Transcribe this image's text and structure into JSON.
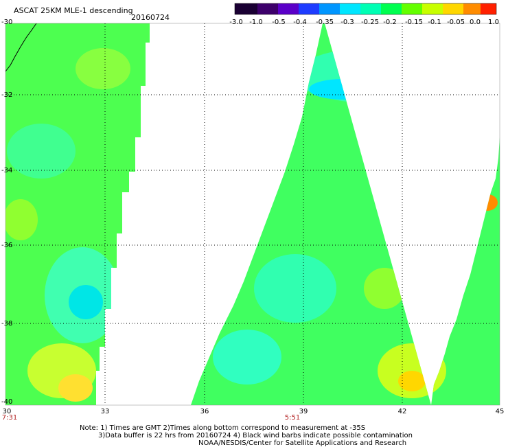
{
  "header": {
    "title": "ASCAT 25KM MLE-1 descending",
    "date": "20160724"
  },
  "colorbar": {
    "tick_labels": [
      "-3.0",
      "-1.0",
      "-0.5",
      "-0.4",
      "-0.35",
      "-0.3",
      "-0.25",
      "-0.2",
      "-0.15",
      "-0.1",
      "-0.05",
      "0.0",
      "1.0"
    ],
    "colors": [
      "#1a0033",
      "#3d006b",
      "#5a00c8",
      "#1e3cff",
      "#0096ff",
      "#00e6ff",
      "#00ffb4",
      "#00ff50",
      "#64ff00",
      "#c8ff00",
      "#ffd700",
      "#ff8c00",
      "#ff2000"
    ]
  },
  "axes": {
    "lat_labels": [
      "-30",
      "-32",
      "-34",
      "-36",
      "-38",
      "-40"
    ],
    "lon_labels": [
      "30",
      "33",
      "36",
      "39",
      "42",
      "45"
    ],
    "times": [
      "7:31",
      "5:51"
    ]
  },
  "notes": [
    "Note: 1) Times are GMT 2)Times along bottom correspond to measurement at -35S",
    "3)Data buffer is 22 hrs from 20160724 4) Black wind barbs indicate possible contamination",
    "NOAA/NESDIS/Center for Satellite Applications and Research"
  ]
}
